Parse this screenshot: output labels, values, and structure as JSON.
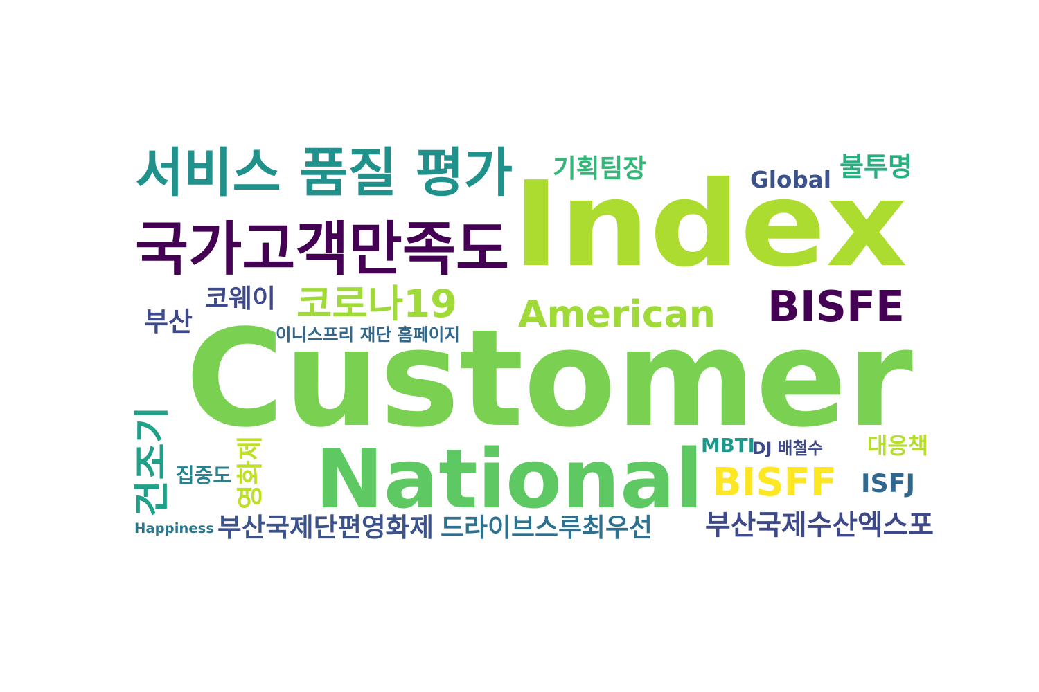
{
  "words": [
    {
      "id": "customer",
      "text": "Customer",
      "color": "#7ad151"
    },
    {
      "id": "index",
      "text": "Index",
      "color": "#addc30"
    },
    {
      "id": "national",
      "text": "National",
      "color": "#5ec962"
    },
    {
      "id": "service-quality",
      "text": "서비스 품질 평가",
      "color": "#21918c"
    },
    {
      "id": "ncsi",
      "text": "국가고객만족도",
      "color": "#440154"
    },
    {
      "id": "american",
      "text": "American",
      "color": "#a0da39"
    },
    {
      "id": "bisfe",
      "text": "BISFE",
      "color": "#440154"
    },
    {
      "id": "bisff",
      "text": "BISFF",
      "color": "#fde725"
    },
    {
      "id": "corona",
      "text": "코로나19",
      "color": "#a0da39"
    },
    {
      "id": "planning-lead",
      "text": "기획팀장",
      "color": "#35b779"
    },
    {
      "id": "opaque",
      "text": "불투명",
      "color": "#29af7f"
    },
    {
      "id": "global",
      "text": "Global",
      "color": "#3b528b"
    },
    {
      "id": "cowei",
      "text": "코웨이",
      "color": "#3e4989"
    },
    {
      "id": "busan",
      "text": "부산",
      "color": "#3e4989"
    },
    {
      "id": "innisfree",
      "text": "이니스프리 재단 홈페이지",
      "color": "#31688e"
    },
    {
      "id": "early",
      "text": "건조기",
      "color": "#1fa088"
    },
    {
      "id": "film-fest",
      "text": "영화제",
      "color": "#bddf26"
    },
    {
      "id": "concentration",
      "text": "집중도",
      "color": "#26828e"
    },
    {
      "id": "happiness",
      "text": "Happiness",
      "color": "#2a788e"
    },
    {
      "id": "biff-short",
      "text": "부산국제단편영화제",
      "color": "#3b528b"
    },
    {
      "id": "drive-thru",
      "text": "드라이브스루최우선",
      "color": "#2c728e"
    },
    {
      "id": "fisheries-expo",
      "text": "부산국제수산엑스포",
      "color": "#3e4989"
    },
    {
      "id": "mbti",
      "text": "MBTI",
      "color": "#1f988b"
    },
    {
      "id": "dj",
      "text": "DJ 배철수",
      "color": "#3e4989"
    },
    {
      "id": "response",
      "text": "대응책",
      "color": "#b5de2b"
    },
    {
      "id": "isfj",
      "text": "ISFJ",
      "color": "#31688e"
    }
  ]
}
